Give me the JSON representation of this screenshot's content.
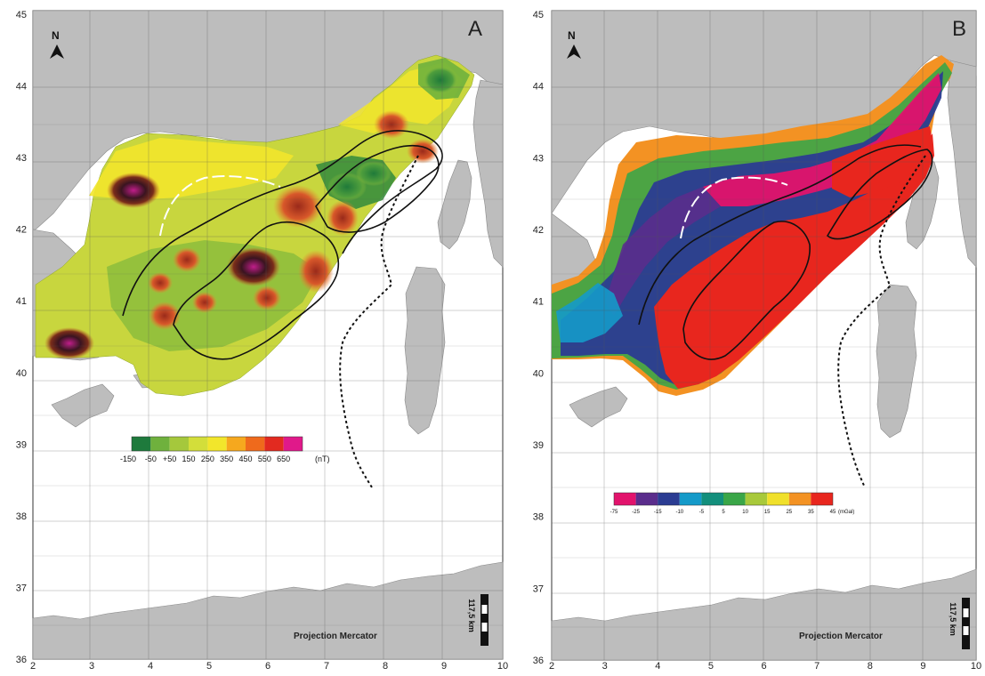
{
  "panels": [
    {
      "label": "A",
      "north": "N",
      "x_ticks": [
        "2",
        "3",
        "4",
        "5",
        "6",
        "7",
        "8",
        "9",
        "10"
      ],
      "y_ticks": [
        "45",
        "44",
        "43",
        "42",
        "41",
        "40",
        "39",
        "38",
        "37",
        "36"
      ],
      "projection": "Projection Mercator",
      "scale_label": "117,5 km",
      "colorbar": {
        "colors": [
          "#1e7a3c",
          "#6fb13d",
          "#a5c83c",
          "#d3de3a",
          "#f2e62b",
          "#f6a81e",
          "#ef6a1c",
          "#e22a20",
          "#e0198a"
        ],
        "labels": [
          "-150",
          "-50",
          "+50",
          "150",
          "250",
          "350",
          "450",
          "550",
          "650"
        ],
        "unit": "(nT)"
      }
    },
    {
      "label": "B",
      "north": "N",
      "x_ticks": [
        "2",
        "3",
        "4",
        "5",
        "6",
        "7",
        "8",
        "9",
        "10"
      ],
      "y_ticks": [
        "45",
        "44",
        "43",
        "42",
        "41",
        "40",
        "39",
        "38",
        "37",
        "36"
      ],
      "projection": "Projection Mercator",
      "scale_label": "117,5 km",
      "colorbar": {
        "colors": [
          "#e2136c",
          "#5a2d8c",
          "#2b3c92",
          "#159ac9",
          "#138f7c",
          "#3aa648",
          "#a8c93b",
          "#f0e02b",
          "#f39223",
          "#e8261e"
        ],
        "labels": [
          "-75",
          "-25",
          "-15",
          "-10",
          "-5",
          "5",
          "10",
          "15",
          "25",
          "35",
          "45"
        ],
        "unit": "(mGal)"
      }
    }
  ]
}
